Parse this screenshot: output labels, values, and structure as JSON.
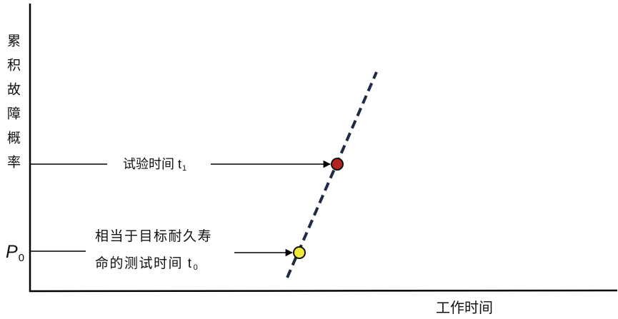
{
  "y_axis": {
    "label": "累积故障概率"
  },
  "x_axis": {
    "label": "工作时间"
  },
  "p0": {
    "main": "P",
    "sub": "0"
  },
  "test_time": {
    "text": "试验时间 t",
    "sub": "1"
  },
  "target_time": {
    "line1": "相当于目标耐久寿",
    "line2": "命的测试时间 t",
    "line2_sub": "0"
  },
  "colors": {
    "fit_line": "#1f2a44",
    "test_point": "#b3231f",
    "target_point": "#f2e83c"
  }
}
